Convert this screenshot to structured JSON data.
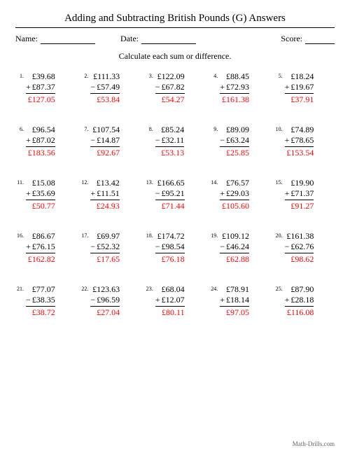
{
  "title": "Adding and Subtracting British Pounds (G) Answers",
  "name_label": "Name:",
  "date_label": "Date:",
  "score_label": "Score:",
  "instruction": "Calculate each sum or difference.",
  "footer": "Math-Drills.com",
  "colors": {
    "answer": "#ff0000",
    "text": "#000000",
    "bg": "#ffffff"
  },
  "currency": "£",
  "problems": [
    {
      "n": "1.",
      "a": "£39.68",
      "op": "+",
      "b": "£87.37",
      "ans": "£127.05"
    },
    {
      "n": "2.",
      "a": "£111.33",
      "op": "−",
      "b": "£57.49",
      "ans": "£53.84"
    },
    {
      "n": "3.",
      "a": "£122.09",
      "op": "−",
      "b": "£67.82",
      "ans": "£54.27"
    },
    {
      "n": "4.",
      "a": "£88.45",
      "op": "+",
      "b": "£72.93",
      "ans": "£161.38"
    },
    {
      "n": "5.",
      "a": "£18.24",
      "op": "+",
      "b": "£19.67",
      "ans": "£37.91"
    },
    {
      "n": "6.",
      "a": "£96.54",
      "op": "+",
      "b": "£87.02",
      "ans": "£183.56"
    },
    {
      "n": "7.",
      "a": "£107.54",
      "op": "−",
      "b": "£14.87",
      "ans": "£92.67"
    },
    {
      "n": "8.",
      "a": "£85.24",
      "op": "−",
      "b": "£32.11",
      "ans": "£53.13"
    },
    {
      "n": "9.",
      "a": "£89.09",
      "op": "−",
      "b": "£63.24",
      "ans": "£25.85"
    },
    {
      "n": "10.",
      "a": "£74.89",
      "op": "+",
      "b": "£78.65",
      "ans": "£153.54"
    },
    {
      "n": "11.",
      "a": "£15.08",
      "op": "+",
      "b": "£35.69",
      "ans": "£50.77"
    },
    {
      "n": "12.",
      "a": "£13.42",
      "op": "+",
      "b": "£11.51",
      "ans": "£24.93"
    },
    {
      "n": "13.",
      "a": "£166.65",
      "op": "−",
      "b": "£95.21",
      "ans": "£71.44"
    },
    {
      "n": "14.",
      "a": "£76.57",
      "op": "+",
      "b": "£29.03",
      "ans": "£105.60"
    },
    {
      "n": "15.",
      "a": "£19.90",
      "op": "+",
      "b": "£71.37",
      "ans": "£91.27"
    },
    {
      "n": "16.",
      "a": "£86.67",
      "op": "+",
      "b": "£76.15",
      "ans": "£162.82"
    },
    {
      "n": "17.",
      "a": "£69.97",
      "op": "−",
      "b": "£52.32",
      "ans": "£17.65"
    },
    {
      "n": "18.",
      "a": "£174.72",
      "op": "−",
      "b": "£98.54",
      "ans": "£76.18"
    },
    {
      "n": "19.",
      "a": "£109.12",
      "op": "−",
      "b": "£46.24",
      "ans": "£62.88"
    },
    {
      "n": "20.",
      "a": "£161.38",
      "op": "−",
      "b": "£62.76",
      "ans": "£98.62"
    },
    {
      "n": "21.",
      "a": "£77.07",
      "op": "−",
      "b": "£38.35",
      "ans": "£38.72"
    },
    {
      "n": "22.",
      "a": "£123.63",
      "op": "−",
      "b": "£96.59",
      "ans": "£27.04"
    },
    {
      "n": "23.",
      "a": "£68.04",
      "op": "+",
      "b": "£12.07",
      "ans": "£80.11"
    },
    {
      "n": "24.",
      "a": "£78.91",
      "op": "+",
      "b": "£18.14",
      "ans": "£97.05"
    },
    {
      "n": "25.",
      "a": "£87.90",
      "op": "+",
      "b": "£28.18",
      "ans": "£116.08"
    }
  ]
}
